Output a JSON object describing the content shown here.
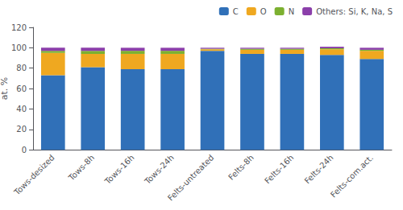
{
  "chart_data": {
    "type": "bar",
    "stacked": true,
    "ylabel": "at. %",
    "categories": [
      "Tows-desized",
      "Tows-8h",
      "Tows-16h",
      "Tows-24h",
      "Felts-untreated",
      "Felts-8h",
      "Felts-16h",
      "Felts-24h",
      "Felts-com.act."
    ],
    "series": [
      {
        "name": "C",
        "color": "#3070B8",
        "values": [
          73.0,
          81.0,
          79.0,
          79.0,
          97.0,
          94.0,
          94.0,
          93.0,
          89.0
        ]
      },
      {
        "name": "O",
        "color": "#EFA820",
        "values": [
          22.0,
          13.0,
          15.0,
          15.0,
          1.5,
          4.0,
          4.0,
          5.5,
          8.0
        ]
      },
      {
        "name": "N",
        "color": "#7CB030",
        "values": [
          2.0,
          3.0,
          3.0,
          3.0,
          0.5,
          1.0,
          1.0,
          1.0,
          1.0
        ]
      },
      {
        "name": "Others: Si, K, Na, S",
        "color": "#8B3FAA",
        "values": [
          3.0,
          3.0,
          3.0,
          3.0,
          1.0,
          1.0,
          1.0,
          1.5,
          2.0
        ]
      }
    ],
    "ylim": [
      0,
      120
    ],
    "yticks": [
      0,
      20,
      40,
      60,
      80,
      100,
      120
    ],
    "grid": false,
    "legend": "upper right"
  }
}
